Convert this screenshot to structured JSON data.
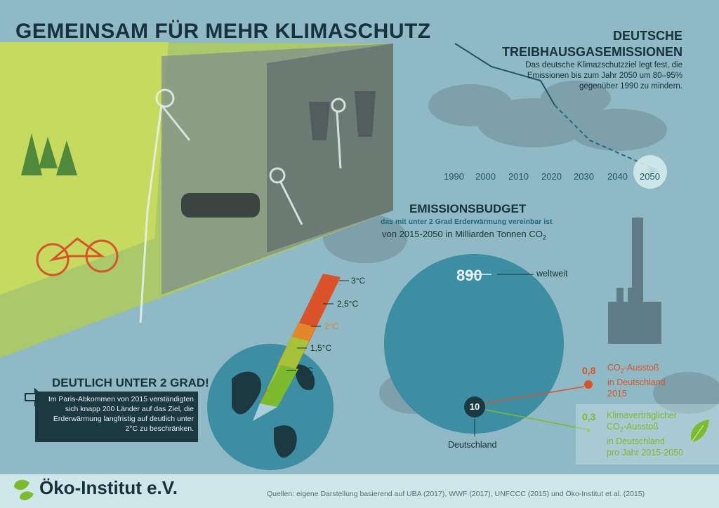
{
  "header": {
    "title": "GEMEINSAM FÜR MEHR KLIMASCHUTZ"
  },
  "emissions": {
    "title_line1": "DEUTSCHE",
    "title_line2": "TREIBHAUSGASEMISSIONEN",
    "description": "Das deutsche Klimazschutzziel legt fest, die Emissionen bis zum Jahr 2050 um 80–95% gegenüber 1990 zu mindern.",
    "years": [
      "1990",
      "2000",
      "2010",
      "2020",
      "2030",
      "2040",
      "2050"
    ]
  },
  "budget": {
    "title": "EMISSIONSBUDGET",
    "subtitle": "das mit unter 2 Grad Erderwärmung vereinbar ist",
    "unit_prefix": "von 2015-2050 in Milliarden Tonnen CO",
    "unit_sub": "2",
    "world_value": "890",
    "world_label": "weltweit",
    "germany_value": "10",
    "germany_label": "Deutschland",
    "co2_2015_value": "0,8",
    "co2_2015_line1": "CO",
    "co2_2015_line1_sub": "2",
    "co2_2015_line1_rest": "-Ausstoß",
    "co2_2015_line2": "in Deutschland",
    "co2_2015_line3": "2015",
    "climate_value": "0,3",
    "climate_line1": "Klimaverträglicher",
    "climate_line2_pre": "CO",
    "climate_line2_sub": "2",
    "climate_line2_rest": "-Ausstoß",
    "climate_line3": "in Deutschland",
    "climate_line4": "pro Jahr 2015-2050",
    "color_world": "#3d8ea3",
    "color_germany": "#1c3942",
    "color_2015": "#d9532a",
    "color_climate": "#7cba2e"
  },
  "thermometer": {
    "labels": [
      "3°C",
      "2,5°C",
      "2°C",
      "1,5°C",
      "1°C"
    ],
    "highlight": "2°C"
  },
  "paris": {
    "title": "DEUTLICH UNTER 2 GRAD!",
    "text": "Im Paris-Abkommen von 2015 verständigten sich knapp 200 Länder auf das Ziel, die Erderwärmung langfristig auf deutlich unter 2°C zu beschränken."
  },
  "footer": {
    "logo": "Öko-Institut e.V.",
    "sources": "Quellen: eigene Darstellung basierend auf UBA (2017), WWF (2017), UNFCCC (2015) und Öko-Institut et al. (2015)"
  },
  "icons": [
    "leaf-icon",
    "arrow-right-icon",
    "globe-icon",
    "factory-icon",
    "logo-mark-icon"
  ]
}
